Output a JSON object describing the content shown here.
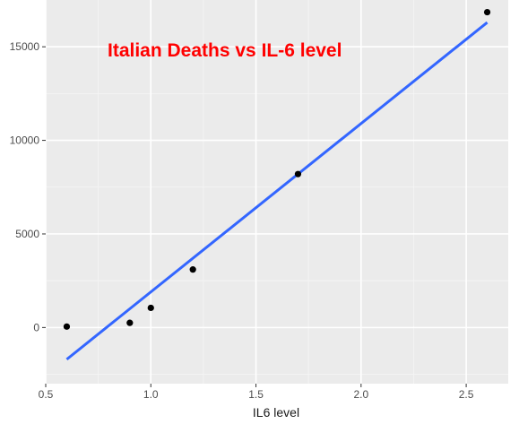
{
  "chart_data": {
    "type": "scatter",
    "title": "Italian Deaths vs IL-6 level",
    "xlabel": "IL6 level",
    "ylabel": "",
    "xlim": [
      0.5,
      2.7
    ],
    "ylim": [
      -3000,
      17500
    ],
    "x_ticks": [
      0.5,
      1.0,
      1.5,
      2.0,
      2.5
    ],
    "x_tick_labels": [
      "0.5",
      "1.0",
      "1.5",
      "2.0",
      "2.5"
    ],
    "y_ticks": [
      0,
      5000,
      10000,
      15000
    ],
    "y_tick_labels": [
      "0",
      "5000",
      "10000",
      "15000"
    ],
    "points": [
      {
        "x": 0.6,
        "y": 50
      },
      {
        "x": 0.9,
        "y": 250
      },
      {
        "x": 1.0,
        "y": 1050
      },
      {
        "x": 1.2,
        "y": 3100
      },
      {
        "x": 1.7,
        "y": 8200
      },
      {
        "x": 2.6,
        "y": 16850
      }
    ],
    "fit_line": {
      "x": [
        0.6,
        2.6
      ],
      "y": [
        -1700,
        16300
      ]
    },
    "grid": true,
    "colors": {
      "panel": "#ebebeb",
      "grid_major": "#ffffff",
      "grid_minor": "#f5f5f5",
      "points": "#000000",
      "fit_line": "#3366ff",
      "title": "#ff0000"
    }
  }
}
